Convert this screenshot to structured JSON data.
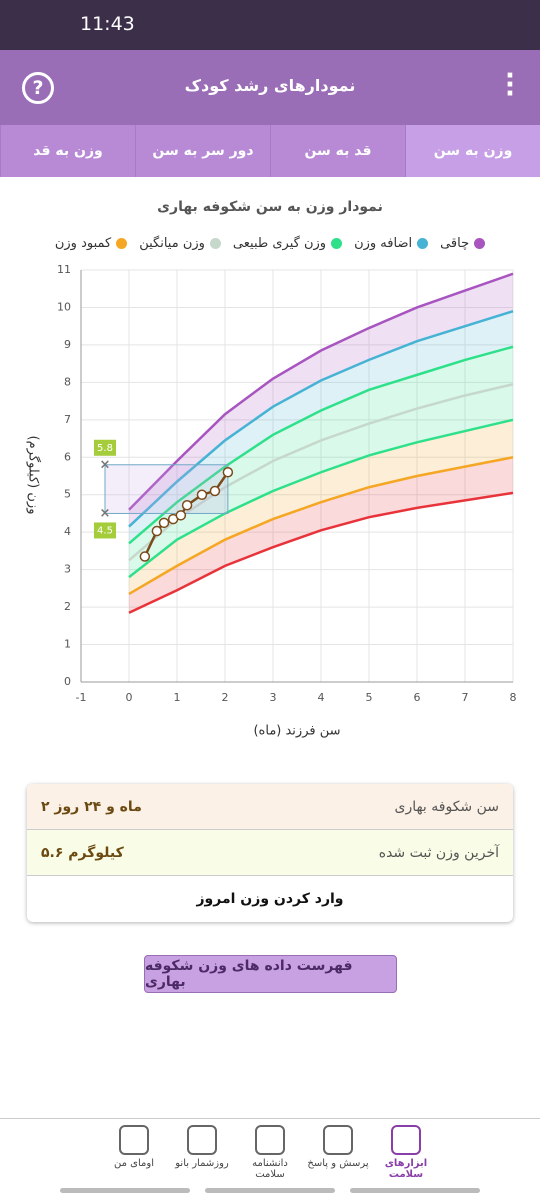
{
  "status_bar": {
    "time": "11:43"
  },
  "header": {
    "title": "نمودارهای رشد کودک"
  },
  "tabs": [
    "وزن به سن",
    "قد به سن",
    "دور سر به سن",
    "وزن به قد"
  ],
  "chart_data": {
    "type": "line",
    "title": "نمودار وزن به سن شکوفه بهاری",
    "x_label": "سن فرزند (ماه)",
    "y_label": "وزن (کیلوگرم)",
    "x": [
      0,
      1,
      2,
      3,
      4,
      5,
      6,
      7,
      8
    ],
    "series": [
      {
        "name": "چاقی",
        "color": "#a855c0",
        "values": [
          4.6,
          5.9,
          7.15,
          8.1,
          8.85,
          9.45,
          10.0,
          10.45,
          10.9
        ]
      },
      {
        "name": "اضافه وزن",
        "color": "#46b3d4",
        "values": [
          4.15,
          5.35,
          6.45,
          7.35,
          8.05,
          8.6,
          9.1,
          9.5,
          9.9
        ]
      },
      {
        "name": "وزن گیری طبیعی",
        "color": "#2fe08a",
        "values": [
          3.7,
          4.8,
          5.75,
          6.6,
          7.25,
          7.8,
          8.2,
          8.6,
          8.95
        ]
      },
      {
        "name": "وزن میانگین",
        "color": "#c6d8cc",
        "values": [
          3.25,
          4.35,
          5.2,
          5.9,
          6.45,
          6.9,
          7.3,
          7.65,
          7.95
        ]
      },
      {
        "color": "#2fe08a",
        "values": [
          2.8,
          3.8,
          4.5,
          5.1,
          5.6,
          6.05,
          6.4,
          6.7,
          7.0
        ]
      },
      {
        "name": "کمبود وزن",
        "color": "#f5a623",
        "values": [
          2.35,
          3.1,
          3.8,
          4.35,
          4.8,
          5.2,
          5.5,
          5.75,
          6.0
        ]
      },
      {
        "color": "#e8333a",
        "values": [
          1.85,
          2.45,
          3.1,
          3.6,
          4.05,
          4.4,
          4.65,
          4.85,
          5.05
        ]
      }
    ],
    "child": {
      "color": "#7a4a1a",
      "x": [
        0.33,
        0.58,
        0.73,
        0.92,
        1.08,
        1.21,
        1.52,
        1.79,
        2.06
      ],
      "values": [
        3.35,
        4.03,
        4.25,
        4.35,
        4.45,
        4.72,
        5.0,
        5.1,
        5.6
      ]
    },
    "range_box": {
      "x": [
        -0.5,
        2.06
      ],
      "low": 4.5,
      "high": 5.8
    },
    "xlim": [
      -1,
      8
    ],
    "xticks": [
      -1,
      0,
      1,
      2,
      3,
      4,
      5,
      6,
      7,
      8
    ],
    "ylim": [
      0,
      11
    ],
    "yticks": [
      0,
      1,
      2,
      3,
      4,
      5,
      6,
      7,
      8,
      9,
      10,
      11
    ],
    "grid": true
  },
  "info": {
    "rows": [
      {
        "label": "سن شکوفه بهاری",
        "value": "۲ ماه و ۲۴ روز"
      },
      {
        "label": "آخرین وزن ثبت شده",
        "value": "۵.۶ کیلوگرم"
      }
    ],
    "action": "وارد کردن وزن امروز"
  },
  "list_button": "فهرست داده های وزن شکوفه بهاری",
  "nav": [
    "ابزارهای سلامت",
    "پرسش و پاسخ",
    "دانشنامه سلامت",
    "روزشمار بانو",
    "اومای من"
  ]
}
